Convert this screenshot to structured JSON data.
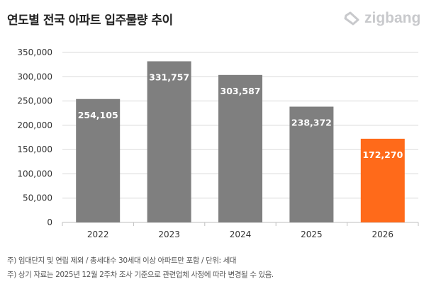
{
  "header": {
    "title": "연도별 전국 아파트 입주물량 추이",
    "logo_text": "zigbang"
  },
  "notes": [
    "주) 임대단지 및 연립 제외 / 총세대수 30세대 이상 아파트만 포함 / 단위: 세대",
    "주) 상기 자료는 2025년 12월 2주차 조사 기준으로 관련업체 사정에 따라 변경될 수 있음."
  ],
  "colors": {
    "bar": "#7f7f7f",
    "highlight": "#ff6a1a",
    "grid": "#d9d9d9"
  },
  "chart_data": {
    "type": "bar",
    "title": "연도별 전국 아파트 입주물량 추이",
    "categories": [
      "2022",
      "2023",
      "2024",
      "2025",
      "2026"
    ],
    "values": [
      254105,
      331757,
      303587,
      238372,
      172270
    ],
    "data_labels": [
      "254,105",
      "331,757",
      "303,587",
      "238,372",
      "172,270"
    ],
    "highlight_index": 4,
    "ylim": [
      0,
      350000
    ],
    "yticks": [
      0,
      50000,
      100000,
      150000,
      200000,
      250000,
      300000,
      350000
    ],
    "ytick_labels": [
      "0",
      "50,000",
      "100,000",
      "150,000",
      "200,000",
      "250,000",
      "300,000",
      "350,000"
    ],
    "grid": true,
    "xlabel": "",
    "ylabel": ""
  }
}
